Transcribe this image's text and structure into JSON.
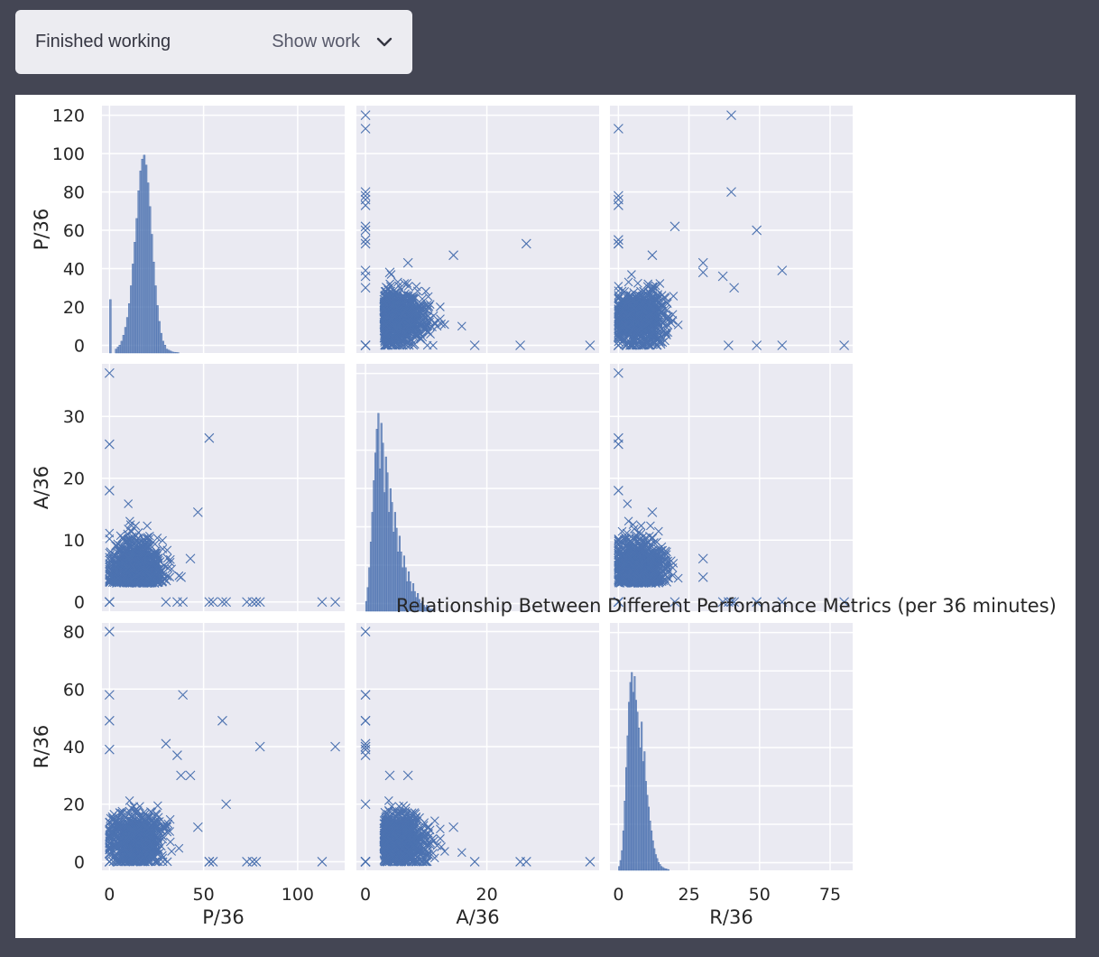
{
  "status": {
    "label": "Finished working",
    "show_work": "Show work",
    "chevron_icon": "chevron-down-icon"
  },
  "chart_data": {
    "type": "scatter",
    "kind": "pairplot",
    "title": "Relationship Between Different Performance Metrics (per 36 minutes)",
    "variables": [
      "P/36",
      "A/36",
      "R/36"
    ],
    "marker": "x",
    "color": "#4c72b0",
    "grid": true,
    "background": "#eaeaf2",
    "limits": {
      "P/36": [
        -4,
        125
      ],
      "A/36": [
        -1.5,
        38.5
      ],
      "R/36": [
        -3,
        83
      ]
    },
    "ticks": {
      "P/36": [
        0,
        20,
        40,
        60,
        80,
        100,
        120
      ],
      "A/36": [
        0,
        10,
        20,
        30
      ],
      "R/36": [
        0,
        20,
        40,
        60,
        80
      ]
    },
    "xticks": {
      "P/36": [
        0,
        50,
        100
      ],
      "A/36": [
        0,
        20
      ],
      "R/36": [
        0,
        25,
        50,
        75
      ]
    },
    "histograms": {
      "P/36": {
        "bin_start": 0,
        "bin_width": 1,
        "counts": [
          0.27,
          0,
          0,
          0.02,
          0.03,
          0.04,
          0.06,
          0.09,
          0.13,
          0.18,
          0.25,
          0.34,
          0.45,
          0.56,
          0.68,
          0.82,
          0.92,
          0.98,
          1.0,
          0.95,
          0.86,
          0.74,
          0.6,
          0.46,
          0.34,
          0.24,
          0.16,
          0.1,
          0.06,
          0.04,
          0.02,
          0.015,
          0.01,
          0.006,
          0.004,
          0.003,
          0.002
        ]
      },
      "A/36": {
        "bin_start": 0,
        "bin_width": 0.25,
        "counts": [
          0.05,
          0.12,
          0.22,
          0.35,
          0.5,
          0.66,
          0.8,
          0.92,
          1.0,
          0.72,
          0.95,
          0.85,
          0.6,
          0.78,
          0.7,
          0.5,
          0.62,
          0.55,
          0.4,
          0.5,
          0.42,
          0.3,
          0.38,
          0.3,
          0.22,
          0.28,
          0.22,
          0.15,
          0.2,
          0.15,
          0.1,
          0.14,
          0.1,
          0.07,
          0.09,
          0.06,
          0.04,
          0.05,
          0.03,
          0.02,
          0.03,
          0.02,
          0.01,
          0.01,
          0.01
        ]
      },
      "R/36": {
        "bin_start": 0,
        "bin_width": 0.5,
        "counts": [
          0.02,
          0.05,
          0.1,
          0.2,
          0.35,
          0.52,
          0.68,
          0.85,
          0.95,
          1.0,
          0.9,
          0.98,
          0.86,
          0.8,
          0.72,
          0.62,
          0.75,
          0.55,
          0.6,
          0.45,
          0.38,
          0.32,
          0.25,
          0.2,
          0.15,
          0.11,
          0.08,
          0.06,
          0.04,
          0.03,
          0.02,
          0.015,
          0.01,
          0.008,
          0.006,
          0.004
        ]
      }
    },
    "outliers": [
      {
        "P/36": 120,
        "A/36": 0,
        "R/36": 40
      },
      {
        "P/36": 113,
        "A/36": 0,
        "R/36": 0
      },
      {
        "P/36": 80,
        "A/36": 0,
        "R/36": 40
      },
      {
        "P/36": 78,
        "A/36": 0,
        "R/36": 0
      },
      {
        "P/36": 76,
        "A/36": 0,
        "R/36": 0
      },
      {
        "P/36": 73,
        "A/36": 0,
        "R/36": 0
      },
      {
        "P/36": 62,
        "A/36": 0,
        "R/36": 20
      },
      {
        "P/36": 60,
        "A/36": 0,
        "R/36": 49
      },
      {
        "P/36": 55,
        "A/36": 0,
        "R/36": 0
      },
      {
        "P/36": 53,
        "A/36": 0,
        "R/36": 0
      },
      {
        "P/36": 53,
        "A/36": 26.5,
        "R/36": 0
      },
      {
        "P/36": 47,
        "A/36": 14.5,
        "R/36": 12
      },
      {
        "P/36": 43,
        "A/36": 7,
        "R/36": 30
      },
      {
        "P/36": 39,
        "A/36": 0,
        "R/36": 58
      },
      {
        "P/36": 36,
        "A/36": 0,
        "R/36": 37
      },
      {
        "P/36": 0,
        "A/36": 37,
        "R/36": 0
      },
      {
        "P/36": 0,
        "A/36": 25.5,
        "R/36": 0
      },
      {
        "P/36": 0,
        "A/36": 18,
        "R/36": 0
      },
      {
        "P/36": 0,
        "A/36": 0,
        "R/36": 80
      },
      {
        "P/36": 0,
        "A/36": 0,
        "R/36": 58
      },
      {
        "P/36": 0,
        "A/36": 0,
        "R/36": 49
      },
      {
        "P/36": 0,
        "A/36": 0,
        "R/36": 39
      },
      {
        "P/36": 30,
        "A/36": 0,
        "R/36": 41
      },
      {
        "P/36": 38,
        "A/36": 4,
        "R/36": 30
      }
    ],
    "cloud": {
      "P/36": [
        0,
        42
      ],
      "A/36": [
        0,
        15
      ],
      "R/36": [
        0,
        25
      ]
    }
  }
}
